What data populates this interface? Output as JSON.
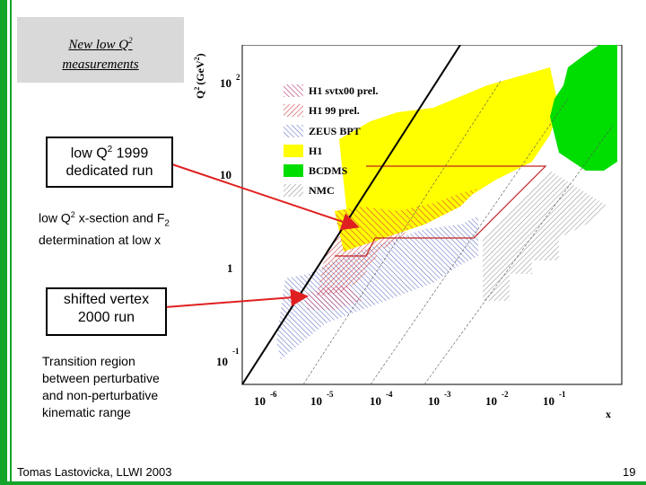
{
  "title": {
    "line1": "New low Q",
    "sup": "2",
    "line2": "measurements"
  },
  "callout_1999": {
    "line1a": "low Q",
    "sup": "2",
    "line1b": " 1999",
    "line2": "dedicated run"
  },
  "note_xsection": {
    "line1a": "low Q",
    "sup": "2",
    "line1b": " x-section and F",
    "sub": "2",
    "line2": "determination at low x"
  },
  "callout_2000": {
    "line1": "shifted vertex",
    "line2": "2000 run"
  },
  "note_transition": {
    "line1": "Transition region",
    "line2": "between perturbative",
    "line3": "and non-perturbative",
    "line4": "kinematic range"
  },
  "footer": {
    "author": "Tomas Lastovicka, LLWI 2003",
    "page": "19"
  },
  "plot": {
    "y_axis_label": "Q",
    "y_axis_label_sup1": "2",
    "y_axis_label_unit": "(GeV",
    "y_axis_label_sup2": "2",
    "y_axis_label_close": ")",
    "x_axis_label": "x",
    "y_ticks": [
      {
        "base": "10",
        "exp": "2"
      },
      {
        "base": "10",
        "exp": ""
      },
      {
        "base": "1",
        "exp": ""
      },
      {
        "base": "10",
        "exp": "-1"
      }
    ],
    "x_ticks": [
      {
        "base": "10",
        "exp": "-6"
      },
      {
        "base": "10",
        "exp": "-5"
      },
      {
        "base": "10",
        "exp": "-4"
      },
      {
        "base": "10",
        "exp": "-3"
      },
      {
        "base": "10",
        "exp": "-2"
      },
      {
        "base": "10",
        "exp": "-1"
      }
    ],
    "legend": [
      {
        "label": "H1 svtx00 prel.",
        "style": "hatch-purple"
      },
      {
        "label": "H1 99 prel.",
        "style": "hatch-red"
      },
      {
        "label": "ZEUS BPT",
        "style": "hatch-blue"
      },
      {
        "label": "H1",
        "style": "yellow"
      },
      {
        "label": "BCDMS",
        "style": "green"
      },
      {
        "label": "NMC",
        "style": "hatch-gray"
      }
    ],
    "colors": {
      "h1": "#ffff00",
      "bcdms": "#00dd00",
      "hatch_red": "#d04040",
      "hatch_blue": "#5060c0",
      "hatch_gray": "#808080",
      "arrow": "#e02020",
      "frame_red": "#c02020"
    }
  }
}
